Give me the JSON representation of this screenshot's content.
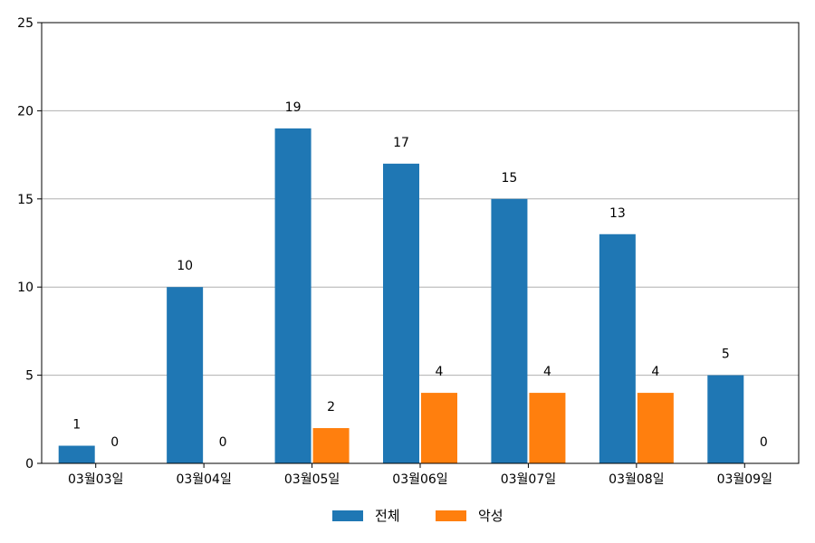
{
  "chart_data": {
    "type": "bar",
    "categories": [
      "03월03일",
      "03월04일",
      "03월05일",
      "03월06일",
      "03월07일",
      "03월08일",
      "03월09일"
    ],
    "series": [
      {
        "name": "전체",
        "values": [
          1,
          10,
          19,
          17,
          15,
          13,
          5
        ],
        "color": "#1f77b4"
      },
      {
        "name": "악성",
        "values": [
          0,
          0,
          2,
          4,
          4,
          4,
          0
        ],
        "color": "#ff7f0e"
      }
    ],
    "ylim": [
      0,
      25
    ],
    "yticks": [
      0,
      5,
      10,
      15,
      20,
      25
    ],
    "grid": "horizontal",
    "legend": "bottom-center"
  }
}
